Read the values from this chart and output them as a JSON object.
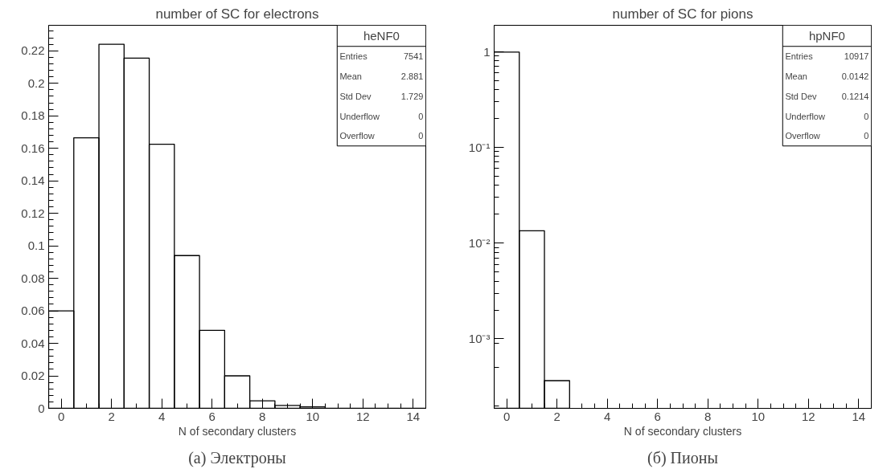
{
  "chart_data": [
    {
      "type": "histogram",
      "title": "number of SC for electrons",
      "xlabel": "N of secondary clusters",
      "color": "#000000",
      "bins": [
        -0.5,
        0.5,
        1.5,
        2.5,
        3.5,
        4.5,
        5.5,
        6.5,
        7.5,
        8.5,
        9.5,
        10.5,
        11.5,
        12.5,
        13.5,
        14.5
      ],
      "values": [
        0.06,
        0.1665,
        0.224,
        0.2155,
        0.1625,
        0.094,
        0.048,
        0.02,
        0.0046,
        0.0018,
        0.0009,
        0,
        0,
        0,
        0
      ],
      "xlim": [
        -0.5,
        14.5
      ],
      "xticks": [
        0,
        2,
        4,
        6,
        8,
        10,
        12,
        14
      ],
      "ylim": [
        0,
        0.2357
      ],
      "yticks": [
        0,
        0.02,
        0.04,
        0.06,
        0.08,
        {
          "value": 0.1,
          "label": "0.1"
        },
        0.12,
        0.14,
        0.16,
        0.18,
        {
          "value": 0.2,
          "label": "0.2"
        },
        0.22
      ],
      "grid": false,
      "annotations": [
        "heNF0",
        "Entries 7541",
        "Mean 2.881",
        "Std Dev 1.729",
        "Underflow 0",
        "Overflow 0",
        "(а) Электроны"
      ]
    },
    {
      "type": "histogram",
      "title": "number of SC for pions",
      "xlabel": "N of secondary clusters",
      "color": "#000000",
      "bins": [
        -0.5,
        0.5,
        1.5,
        2.5,
        3.5,
        4.5,
        5.5,
        6.5,
        7.5,
        8.5,
        9.5,
        10.5,
        11.5,
        12.5,
        13.5,
        14.5
      ],
      "values": [
        0.986,
        0.01345,
        0.000366,
        null,
        null,
        null,
        null,
        null,
        null,
        null,
        null,
        null,
        null,
        null,
        null
      ],
      "xlim": [
        -0.5,
        14.5
      ],
      "xticks": [
        0,
        2,
        4,
        6,
        8,
        10,
        12,
        14
      ],
      "ylim": [
        0.000188,
        1.88
      ],
      "yticks": [
        {
          "value": 0.001,
          "label": "10⁻³"
        },
        {
          "value": 0.01,
          "label": "10⁻²"
        },
        {
          "value": 0.1,
          "label": "10⁻¹"
        },
        1
      ],
      "log": "y",
      "grid": false,
      "annotations": [
        "hpNF0",
        "Entries 10917",
        "Mean 0.0142",
        "Std Dev 0.1214",
        "Underflow 0",
        "Overflow 0",
        "(б) Пионы"
      ]
    }
  ]
}
